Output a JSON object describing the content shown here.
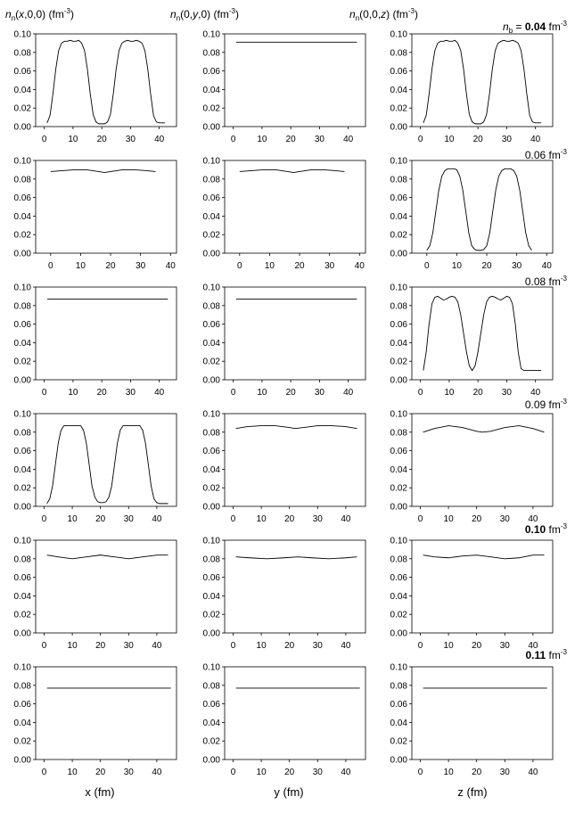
{
  "column_titles": [
    {
      "n": "n",
      "sub": "n",
      "args_pre": "(",
      "var": "x",
      "args_post": ",0,0)",
      "unit": " (fm",
      "exp": "-3",
      "close": ")"
    },
    {
      "n": "n",
      "sub": "n",
      "args_pre": "(0,",
      "var": "y",
      "args_post": ",0)",
      "unit": " (fm",
      "exp": "-3",
      "close": ")"
    },
    {
      "n": "n",
      "sub": "n",
      "args_pre": "(0,0,",
      "var": "z",
      "args_post": ")",
      "unit": " (fm",
      "exp": "-3",
      "close": ")"
    }
  ],
  "row_labels": [
    {
      "prefix_n": "n",
      "prefix_sub": "b",
      "prefix_eq": " = ",
      "value": "0.04",
      "unit": " fm",
      "exp": "-3"
    },
    {
      "prefix_n": "",
      "prefix_sub": "",
      "prefix_eq": "",
      "value": "0.06",
      "unit": " fm",
      "exp": "-3"
    },
    {
      "prefix_n": "",
      "prefix_sub": "",
      "prefix_eq": "",
      "value": "0.08",
      "unit": " fm",
      "exp": "-3"
    },
    {
      "prefix_n": "",
      "prefix_sub": "",
      "prefix_eq": "",
      "value": "0.09",
      "unit": " fm",
      "exp": "-3"
    },
    {
      "prefix_n": "",
      "prefix_sub": "",
      "prefix_eq": "",
      "value": "0.10",
      "unit": " fm",
      "exp": "-3"
    },
    {
      "prefix_n": "",
      "prefix_sub": "",
      "prefix_eq": "",
      "value": "0.11",
      "unit": " fm",
      "exp": "-3"
    }
  ],
  "x_axis_labels": [
    "x (fm)",
    "y (fm)",
    "z (fm)"
  ],
  "y_ticks": [
    "0.00",
    "0.02",
    "0.04",
    "0.06",
    "0.08",
    "0.10"
  ],
  "chart_data": [
    {
      "type": "line",
      "row": 0,
      "col": 0,
      "xticks": [
        0,
        10,
        20,
        30,
        40
      ],
      "xlim": [
        -3,
        46
      ],
      "ylim": [
        0,
        0.1
      ],
      "x": [
        1,
        2,
        3,
        4,
        5,
        6,
        7,
        8,
        9,
        10,
        11,
        12,
        13,
        14,
        15,
        16,
        17,
        18,
        19,
        20,
        21,
        22,
        23,
        24,
        25,
        26,
        27,
        28,
        29,
        30,
        31,
        32,
        33,
        34,
        35,
        36,
        37,
        38,
        39,
        40,
        41,
        42
      ],
      "y": [
        0.004,
        0.012,
        0.035,
        0.062,
        0.082,
        0.09,
        0.092,
        0.092,
        0.093,
        0.092,
        0.092,
        0.093,
        0.09,
        0.082,
        0.062,
        0.035,
        0.013,
        0.005,
        0.003,
        0.003,
        0.003,
        0.005,
        0.013,
        0.035,
        0.062,
        0.082,
        0.09,
        0.092,
        0.093,
        0.092,
        0.092,
        0.093,
        0.092,
        0.09,
        0.082,
        0.062,
        0.035,
        0.012,
        0.005,
        0.004,
        0.004,
        0.004
      ]
    },
    {
      "type": "line",
      "row": 0,
      "col": 1,
      "xticks": [
        0,
        10,
        20,
        30,
        40
      ],
      "xlim": [
        -3,
        46
      ],
      "ylim": [
        0,
        0.1
      ],
      "x": [
        1,
        43
      ],
      "y": [
        0.091,
        0.091
      ]
    },
    {
      "type": "line",
      "row": 0,
      "col": 2,
      "xticks": [
        0,
        10,
        20,
        30,
        40
      ],
      "xlim": [
        -3,
        46
      ],
      "ylim": [
        0,
        0.1
      ],
      "x": [
        1,
        2,
        3,
        4,
        5,
        6,
        7,
        8,
        9,
        10,
        11,
        12,
        13,
        14,
        15,
        16,
        17,
        18,
        19,
        20,
        21,
        22,
        23,
        24,
        25,
        26,
        27,
        28,
        29,
        30,
        31,
        32,
        33,
        34,
        35,
        36,
        37,
        38,
        39,
        40,
        41,
        42
      ],
      "y": [
        0.004,
        0.012,
        0.035,
        0.062,
        0.082,
        0.09,
        0.092,
        0.092,
        0.093,
        0.092,
        0.092,
        0.093,
        0.09,
        0.082,
        0.062,
        0.035,
        0.013,
        0.005,
        0.003,
        0.003,
        0.003,
        0.005,
        0.013,
        0.035,
        0.062,
        0.082,
        0.09,
        0.092,
        0.093,
        0.092,
        0.092,
        0.093,
        0.092,
        0.09,
        0.082,
        0.062,
        0.035,
        0.012,
        0.005,
        0.004,
        0.004,
        0.004
      ]
    },
    {
      "type": "line",
      "row": 1,
      "col": 0,
      "xticks": [
        0,
        10,
        20,
        30,
        40
      ],
      "xlim": [
        -5,
        42
      ],
      "ylim": [
        0,
        0.1
      ],
      "x": [
        0,
        4,
        8,
        12,
        16,
        18,
        20,
        24,
        28,
        32,
        35
      ],
      "y": [
        0.088,
        0.089,
        0.09,
        0.09,
        0.088,
        0.087,
        0.088,
        0.09,
        0.09,
        0.089,
        0.088
      ]
    },
    {
      "type": "line",
      "row": 1,
      "col": 1,
      "xticks": [
        0,
        10,
        20,
        30,
        40
      ],
      "xlim": [
        -5,
        42
      ],
      "ylim": [
        0,
        0.1
      ],
      "x": [
        0,
        4,
        8,
        12,
        16,
        18,
        20,
        24,
        28,
        32,
        35
      ],
      "y": [
        0.088,
        0.089,
        0.09,
        0.09,
        0.088,
        0.087,
        0.088,
        0.09,
        0.09,
        0.089,
        0.088
      ]
    },
    {
      "type": "line",
      "row": 1,
      "col": 2,
      "xticks": [
        0,
        10,
        20,
        30,
        40
      ],
      "xlim": [
        -5,
        42
      ],
      "ylim": [
        0,
        0.1
      ],
      "x": [
        0,
        1,
        2,
        3,
        4,
        5,
        6,
        7,
        8,
        9,
        10,
        11,
        12,
        13,
        14,
        15,
        16,
        17,
        18,
        19,
        20,
        21,
        22,
        23,
        24,
        25,
        26,
        27,
        28,
        29,
        30,
        31,
        32,
        33,
        34,
        35
      ],
      "y": [
        0.003,
        0.008,
        0.022,
        0.045,
        0.068,
        0.083,
        0.089,
        0.091,
        0.091,
        0.091,
        0.09,
        0.083,
        0.068,
        0.045,
        0.022,
        0.008,
        0.004,
        0.003,
        0.003,
        0.004,
        0.008,
        0.022,
        0.045,
        0.068,
        0.083,
        0.089,
        0.091,
        0.091,
        0.091,
        0.089,
        0.083,
        0.068,
        0.045,
        0.022,
        0.008,
        0.003
      ]
    },
    {
      "type": "line",
      "row": 2,
      "col": 0,
      "xticks": [
        0,
        10,
        20,
        30,
        40
      ],
      "xlim": [
        -3,
        46
      ],
      "ylim": [
        0,
        0.1
      ],
      "x": [
        1,
        43
      ],
      "y": [
        0.087,
        0.087
      ]
    },
    {
      "type": "line",
      "row": 2,
      "col": 1,
      "xticks": [
        0,
        10,
        20,
        30,
        40
      ],
      "xlim": [
        -3,
        46
      ],
      "ylim": [
        0,
        0.1
      ],
      "x": [
        1,
        43
      ],
      "y": [
        0.087,
        0.087
      ]
    },
    {
      "type": "line",
      "row": 2,
      "col": 2,
      "xticks": [
        0,
        10,
        20,
        30,
        40
      ],
      "xlim": [
        -3,
        46
      ],
      "ylim": [
        0,
        0.1
      ],
      "x": [
        1,
        2,
        3,
        4,
        5,
        6,
        7,
        8,
        9,
        10,
        11,
        12,
        13,
        14,
        15,
        16,
        17,
        18,
        19,
        20,
        21,
        22,
        23,
        24,
        25,
        26,
        27,
        28,
        29,
        30,
        31,
        32,
        33,
        34,
        35,
        36,
        37,
        38,
        39,
        40,
        41,
        42
      ],
      "y": [
        0.01,
        0.03,
        0.06,
        0.082,
        0.089,
        0.09,
        0.088,
        0.086,
        0.087,
        0.089,
        0.09,
        0.089,
        0.084,
        0.07,
        0.05,
        0.03,
        0.015,
        0.01,
        0.015,
        0.03,
        0.05,
        0.07,
        0.084,
        0.089,
        0.09,
        0.089,
        0.087,
        0.086,
        0.088,
        0.09,
        0.089,
        0.082,
        0.06,
        0.03,
        0.012,
        0.01,
        0.01,
        0.01,
        0.01,
        0.01,
        0.01,
        0.01
      ]
    },
    {
      "type": "line",
      "row": 3,
      "col": 0,
      "xticks": [
        0,
        10,
        20,
        30,
        40
      ],
      "xlim": [
        -3,
        47
      ],
      "ylim": [
        0,
        0.1
      ],
      "x": [
        1,
        2,
        3,
        4,
        5,
        6,
        7,
        8,
        9,
        10,
        11,
        12,
        13,
        14,
        15,
        16,
        17,
        18,
        19,
        20,
        21,
        22,
        23,
        24,
        25,
        26,
        27,
        28,
        29,
        30,
        31,
        32,
        33,
        34,
        35,
        36,
        37,
        38,
        39,
        40,
        41,
        42,
        43,
        44
      ],
      "y": [
        0.003,
        0.008,
        0.022,
        0.045,
        0.068,
        0.082,
        0.087,
        0.087,
        0.087,
        0.087,
        0.087,
        0.087,
        0.087,
        0.082,
        0.068,
        0.045,
        0.022,
        0.01,
        0.005,
        0.004,
        0.004,
        0.005,
        0.01,
        0.022,
        0.045,
        0.068,
        0.082,
        0.087,
        0.087,
        0.087,
        0.087,
        0.087,
        0.087,
        0.087,
        0.082,
        0.068,
        0.045,
        0.022,
        0.008,
        0.004,
        0.003,
        0.003,
        0.003,
        0.003
      ]
    },
    {
      "type": "line",
      "row": 3,
      "col": 1,
      "xticks": [
        0,
        10,
        20,
        30,
        40
      ],
      "xlim": [
        -3,
        47
      ],
      "ylim": [
        0,
        0.1
      ],
      "x": [
        1,
        5,
        10,
        15,
        20,
        22,
        25,
        30,
        35,
        40,
        44
      ],
      "y": [
        0.084,
        0.086,
        0.087,
        0.087,
        0.085,
        0.084,
        0.085,
        0.087,
        0.087,
        0.086,
        0.084
      ]
    },
    {
      "type": "line",
      "row": 3,
      "col": 2,
      "xticks": [
        0,
        10,
        20,
        30,
        40
      ],
      "xlim": [
        -3,
        47
      ],
      "ylim": [
        0,
        0.1
      ],
      "x": [
        1,
        5,
        10,
        15,
        20,
        22,
        25,
        30,
        35,
        40,
        44
      ],
      "y": [
        0.08,
        0.084,
        0.087,
        0.085,
        0.081,
        0.08,
        0.081,
        0.085,
        0.087,
        0.084,
        0.08
      ]
    },
    {
      "type": "line",
      "row": 4,
      "col": 0,
      "xticks": [
        0,
        10,
        20,
        30,
        40
      ],
      "xlim": [
        -3,
        47
      ],
      "ylim": [
        0,
        0.1
      ],
      "x": [
        1,
        5,
        10,
        15,
        20,
        25,
        30,
        35,
        40,
        44
      ],
      "y": [
        0.084,
        0.082,
        0.08,
        0.082,
        0.084,
        0.082,
        0.08,
        0.082,
        0.084,
        0.084
      ]
    },
    {
      "type": "line",
      "row": 4,
      "col": 1,
      "xticks": [
        0,
        10,
        20,
        30,
        40
      ],
      "xlim": [
        -3,
        47
      ],
      "ylim": [
        0,
        0.1
      ],
      "x": [
        1,
        6,
        12,
        18,
        23,
        28,
        34,
        40,
        44
      ],
      "y": [
        0.082,
        0.081,
        0.08,
        0.081,
        0.082,
        0.081,
        0.08,
        0.081,
        0.082
      ]
    },
    {
      "type": "line",
      "row": 4,
      "col": 2,
      "xticks": [
        0,
        10,
        20,
        30,
        40
      ],
      "xlim": [
        -3,
        47
      ],
      "ylim": [
        0,
        0.1
      ],
      "x": [
        1,
        5,
        10,
        15,
        20,
        25,
        30,
        35,
        40,
        44
      ],
      "y": [
        0.084,
        0.082,
        0.081,
        0.083,
        0.084,
        0.082,
        0.08,
        0.081,
        0.084,
        0.084
      ]
    },
    {
      "type": "line",
      "row": 5,
      "col": 0,
      "xticks": [
        0,
        10,
        20,
        30,
        40
      ],
      "xlim": [
        -3,
        47
      ],
      "ylim": [
        0,
        0.1
      ],
      "x": [
        1,
        45
      ],
      "y": [
        0.077,
        0.077
      ]
    },
    {
      "type": "line",
      "row": 5,
      "col": 1,
      "xticks": [
        0,
        10,
        20,
        30,
        40
      ],
      "xlim": [
        -3,
        47
      ],
      "ylim": [
        0,
        0.1
      ],
      "x": [
        1,
        45
      ],
      "y": [
        0.077,
        0.077
      ]
    },
    {
      "type": "line",
      "row": 5,
      "col": 2,
      "xticks": [
        0,
        10,
        20,
        30,
        40
      ],
      "xlim": [
        -3,
        47
      ],
      "ylim": [
        0,
        0.1
      ],
      "x": [
        1,
        45
      ],
      "y": [
        0.077,
        0.077
      ]
    }
  ]
}
